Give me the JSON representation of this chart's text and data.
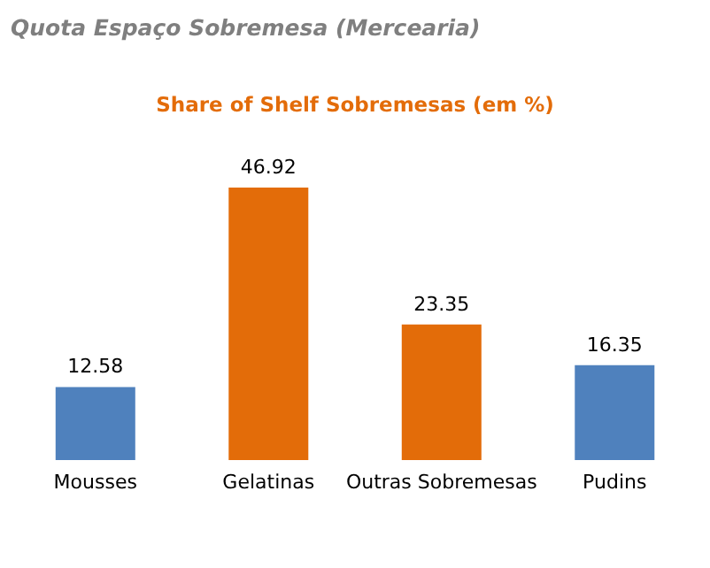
{
  "chart_data": {
    "type": "bar",
    "title": "Quota Espaço Sobremesa  (Mercearia)",
    "subtitle": "Share of Shelf Sobremesas (em %)",
    "categories": [
      "Mousses",
      "Gelatinas",
      "Outras Sobremesas",
      "Pudins"
    ],
    "values": [
      12.58,
      46.92,
      23.35,
      16.35
    ],
    "colors": [
      "#4f81bd",
      "#e36c09",
      "#e36c09",
      "#4f81bd"
    ],
    "data_labels": true,
    "grid": false,
    "legend": false
  }
}
